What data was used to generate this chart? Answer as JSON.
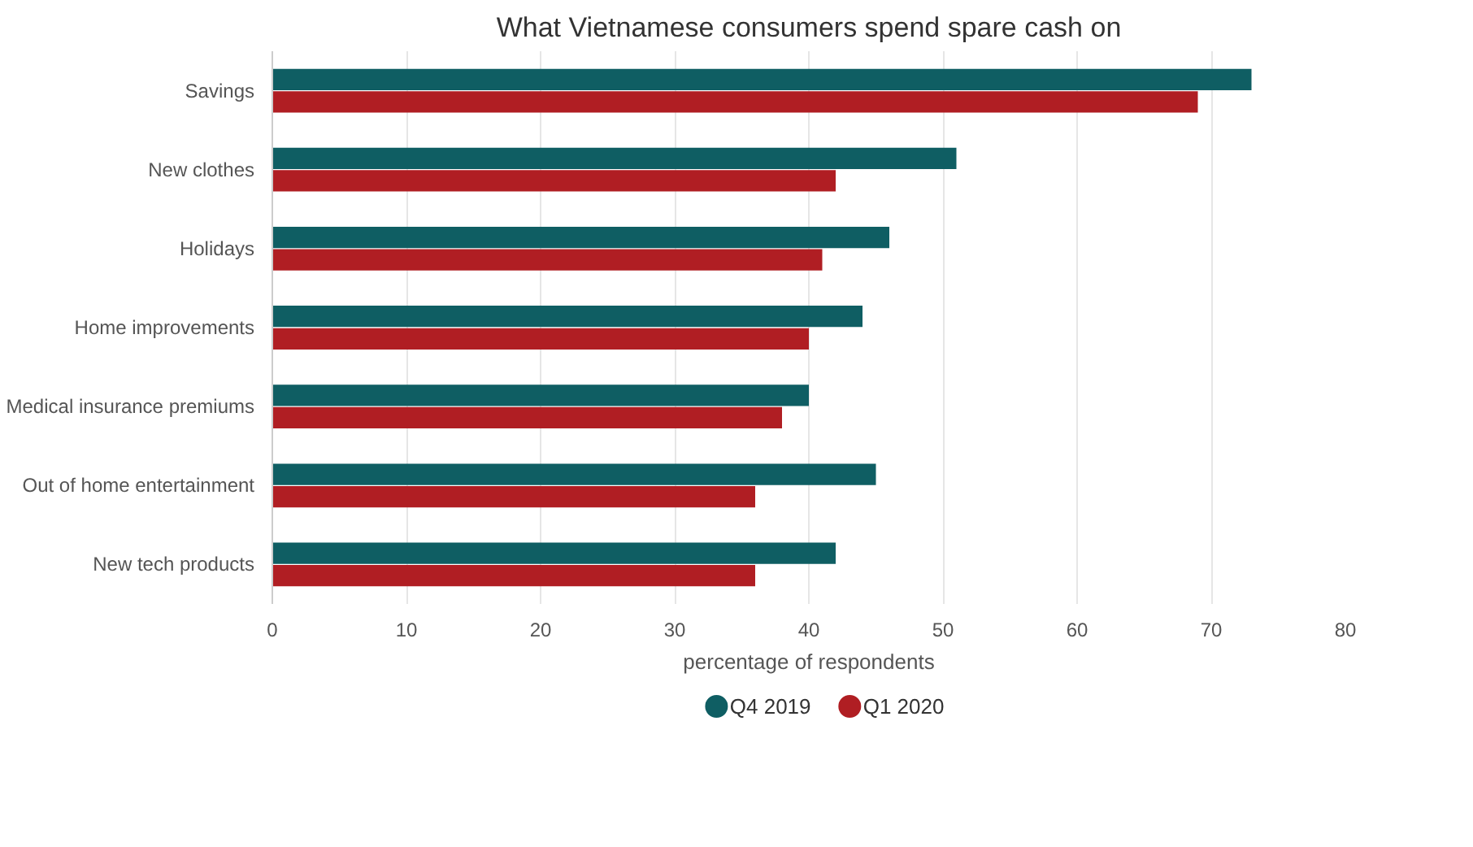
{
  "chart_data": {
    "type": "bar",
    "orientation": "horizontal",
    "title": "What Vietnamese consumers spend spare cash on",
    "xlabel": "percentage of respondents",
    "categories": [
      "Savings",
      "New clothes",
      "Holidays",
      "Home improvements",
      "Medical insurance premiums",
      "Out of home entertainment",
      "New tech products"
    ],
    "series": [
      {
        "name": "Q4 2019",
        "color": "#0f5e63",
        "values": [
          73,
          51,
          46,
          44,
          40,
          45,
          42
        ]
      },
      {
        "name": "Q1 2020",
        "color": "#b01e23",
        "values": [
          69,
          42,
          41,
          40,
          38,
          36,
          36
        ]
      }
    ],
    "xlim": [
      0,
      80
    ],
    "xticks": [
      0,
      10,
      20,
      30,
      40,
      50,
      60,
      70,
      80
    ],
    "grid": "x",
    "legend": "bottom"
  }
}
